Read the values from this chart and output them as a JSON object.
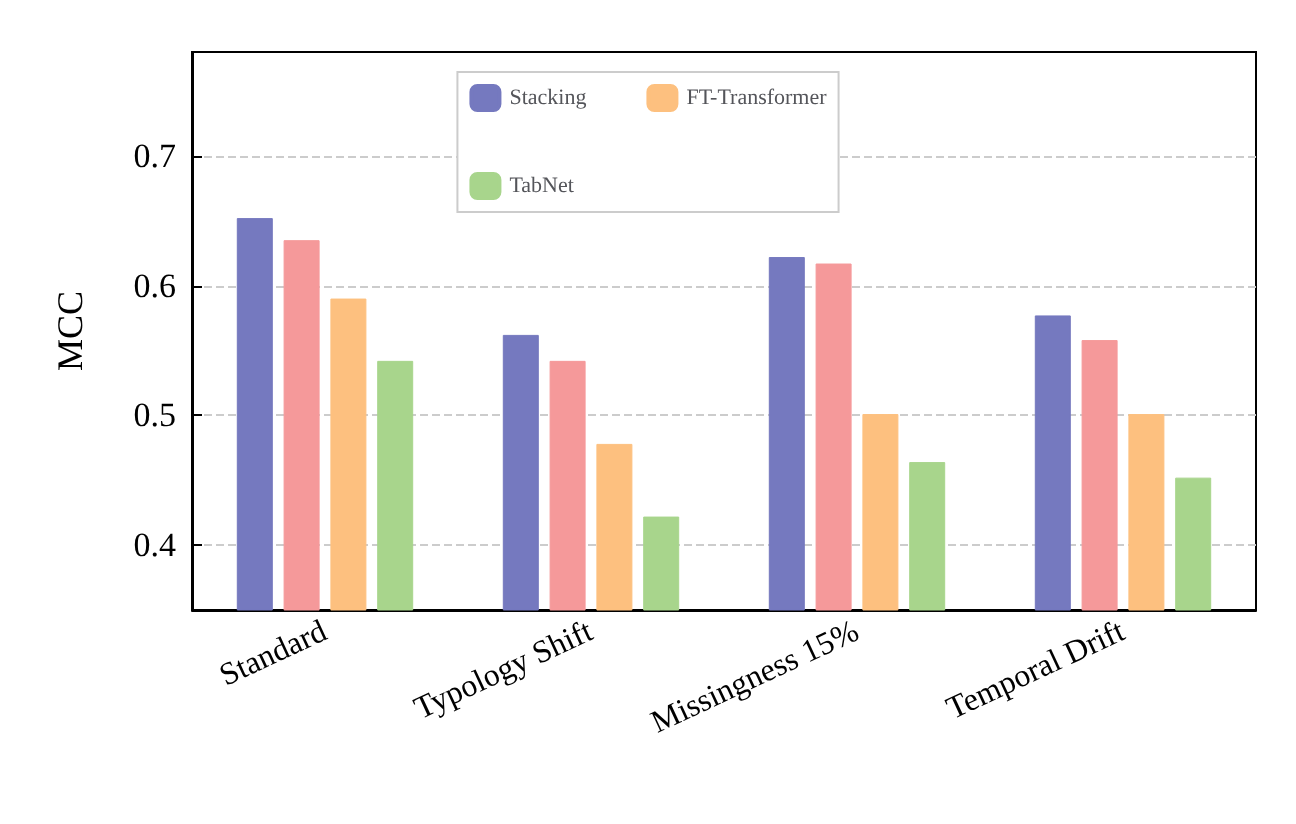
{
  "chart_data": {
    "type": "bar",
    "ylabel": "MCC",
    "categories": [
      "Standard",
      "Typology Shift",
      "Missingness 15%",
      "Temporal Drift"
    ],
    "series": [
      {
        "name": "Stacking",
        "color": "#7579bf",
        "values": [
          0.652,
          0.562,
          0.622,
          0.577
        ]
      },
      {
        "color": "#f5999a",
        "values": [
          0.635,
          0.542,
          0.617,
          0.558
        ]
      },
      {
        "name": "FT-Transformer",
        "color": "#fdc07f",
        "values": [
          0.59,
          0.478,
          0.501,
          0.501
        ]
      },
      {
        "name": "TabNet",
        "color": "#a8d58c",
        "values": [
          0.542,
          0.422,
          0.464,
          0.452
        ]
      }
    ],
    "ylim": [
      0.35,
      0.78
    ],
    "yticks": [
      0.4,
      0.5,
      0.6,
      0.7
    ],
    "grid": "y",
    "legend": "top"
  }
}
